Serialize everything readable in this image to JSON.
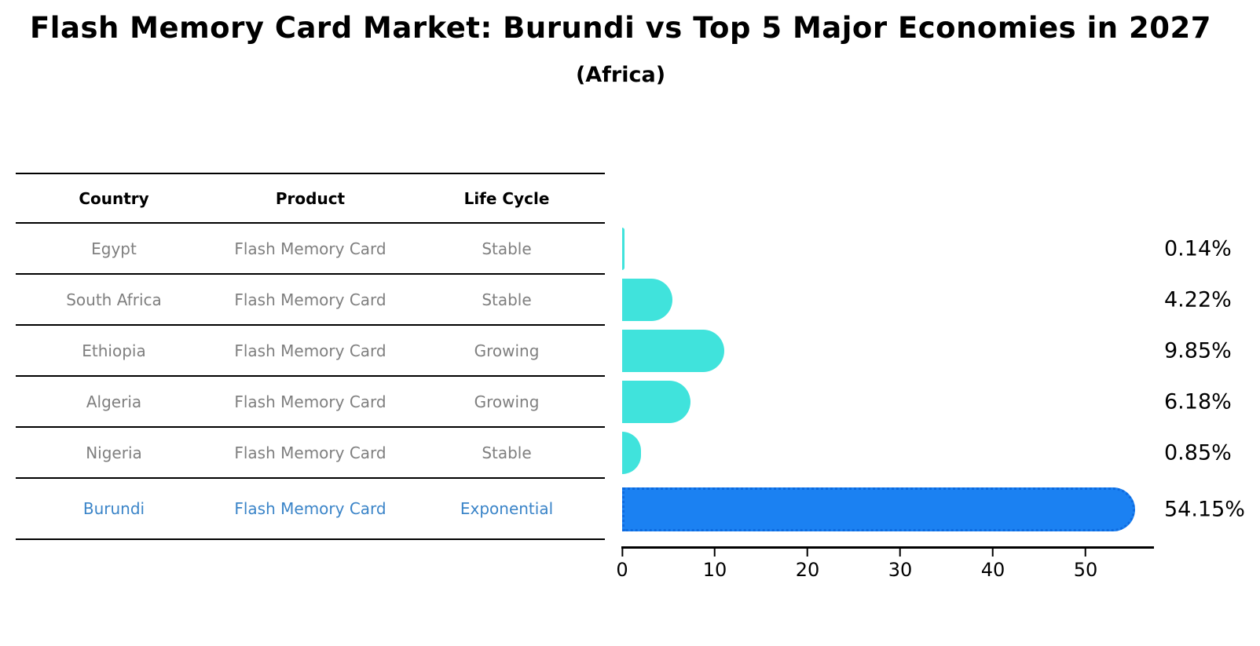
{
  "title": "Flash Memory Card Market: Burundi vs Top 5 Major Economies in 2027",
  "subtitle": "(Africa)",
  "table": {
    "headers": [
      "Country",
      "Product",
      "Life Cycle"
    ],
    "rows": [
      {
        "country": "Egypt",
        "product": "Flash Memory Card",
        "life_cycle": "Stable"
      },
      {
        "country": "South Africa",
        "product": "Flash Memory Card",
        "life_cycle": "Stable"
      },
      {
        "country": "Ethiopia",
        "product": "Flash Memory Card",
        "life_cycle": "Growing"
      },
      {
        "country": "Algeria",
        "product": "Flash Memory Card",
        "life_cycle": "Growing"
      },
      {
        "country": "Nigeria",
        "product": "Flash Memory Card",
        "life_cycle": "Stable"
      },
      {
        "country": "Burundi",
        "product": "Flash Memory Card",
        "life_cycle": "Exponential"
      }
    ],
    "highlight_row": "Burundi"
  },
  "chart_data": {
    "type": "bar",
    "orientation": "horizontal",
    "categories": [
      "Egypt",
      "South Africa",
      "Ethiopia",
      "Algeria",
      "Nigeria",
      "Burundi"
    ],
    "values": [
      0.14,
      4.22,
      9.85,
      6.18,
      0.85,
      54.15
    ],
    "value_labels": [
      "0.14%",
      "4.22%",
      "9.85%",
      "6.18%",
      "0.85%",
      "54.15%"
    ],
    "xticks": [
      "0",
      "10",
      "20",
      "30",
      "40",
      "50"
    ],
    "xlim": [
      0,
      57
    ],
    "grid": false,
    "legend": false,
    "bar_color": "#40E3DC",
    "highlight_color": "#1B81F2",
    "highlight_index": 5,
    "row_text_color": "#7f7f7f",
    "highlight_text_color": "#3A84C8"
  }
}
